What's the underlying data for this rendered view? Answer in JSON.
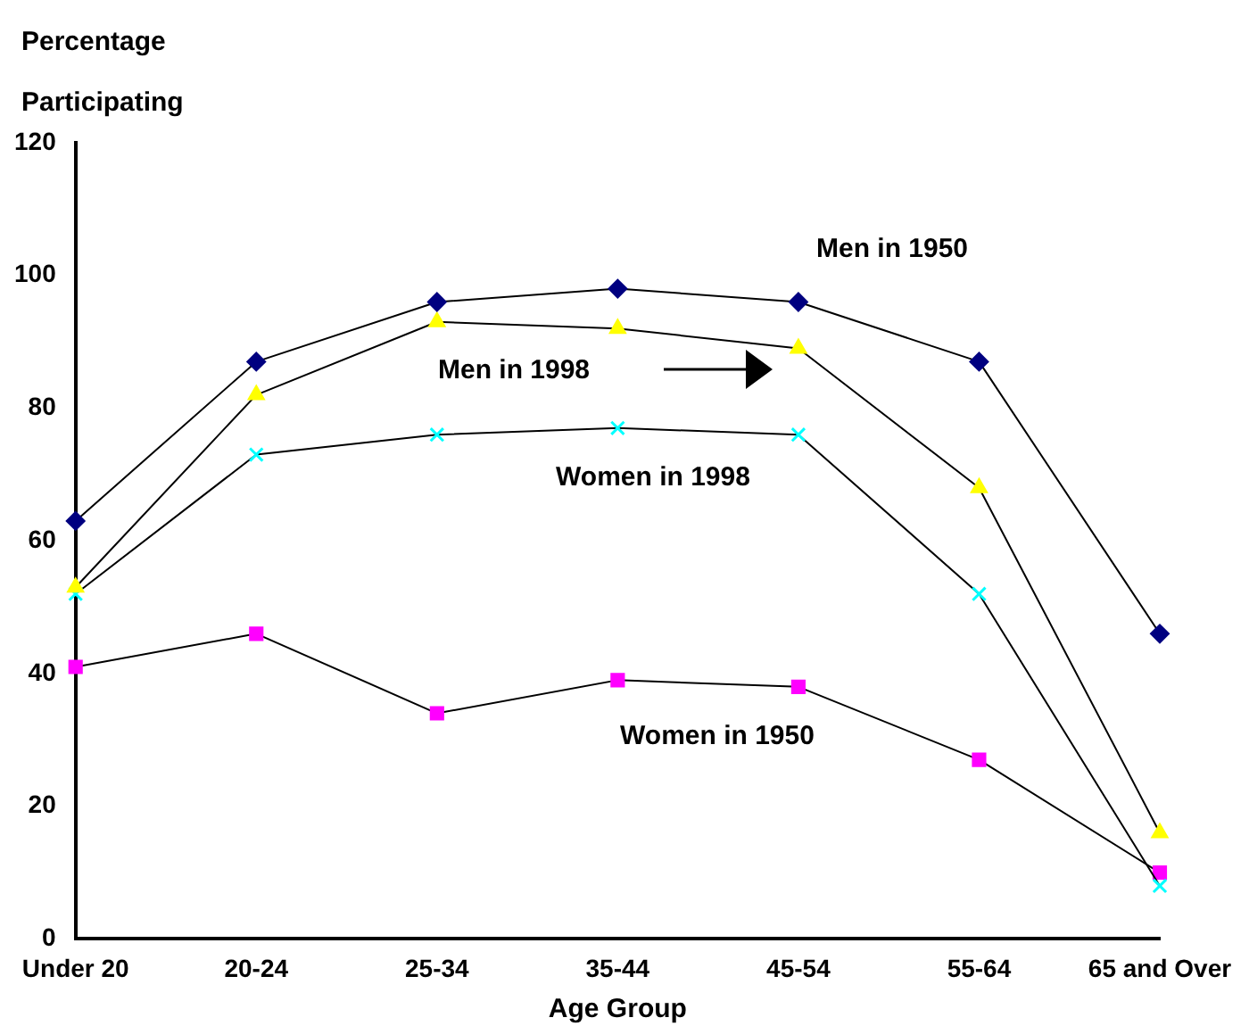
{
  "chart_data": {
    "type": "line",
    "ylabel": "Percentage Participating",
    "xlabel": "Age Group",
    "categories": [
      "Under 20",
      "20-24",
      "25-34",
      "35-44",
      "45-54",
      "55-64",
      "65 and Over"
    ],
    "series": [
      {
        "name": "Men in 1950",
        "color": "#000080",
        "marker": "diamond",
        "values": [
          63,
          87,
          96,
          98,
          96,
          87,
          46
        ]
      },
      {
        "name": "Men in 1998",
        "color": "#ffff00",
        "marker": "triangle",
        "values": [
          53,
          82,
          93,
          92,
          89,
          68,
          16
        ]
      },
      {
        "name": "Women in 1998",
        "color": "#00ffff",
        "marker": "cross",
        "values": [
          52,
          73,
          76,
          77,
          76,
          52,
          8
        ]
      },
      {
        "name": "Women in 1950",
        "color": "#ff00ff",
        "marker": "square",
        "values": [
          41,
          46,
          34,
          39,
          38,
          27,
          10
        ]
      }
    ],
    "ylim": [
      0,
      120
    ],
    "yticks": [
      0,
      20,
      40,
      60,
      80,
      100,
      120
    ],
    "grid": false,
    "legend": false
  }
}
